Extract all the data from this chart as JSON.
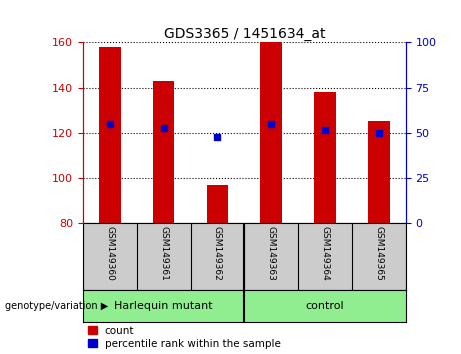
{
  "title": "GDS3365 / 1451634_at",
  "samples": [
    "GSM149360",
    "GSM149361",
    "GSM149362",
    "GSM149363",
    "GSM149364",
    "GSM149365"
  ],
  "count_values": [
    158,
    143,
    97,
    160,
    138,
    125
  ],
  "percentile_values": [
    124,
    122,
    118,
    124,
    121,
    120
  ],
  "ylim_left": [
    80,
    160
  ],
  "yticks_left": [
    80,
    100,
    120,
    140,
    160
  ],
  "ylim_right": [
    0,
    100
  ],
  "yticks_right": [
    0,
    25,
    50,
    75,
    100
  ],
  "bar_color": "#cc0000",
  "dot_color": "#0000cc",
  "group1_label": "Harlequin mutant",
  "group2_label": "control",
  "group_color": "#90ee90",
  "sample_bg_color": "#cccccc",
  "group_label_text": "genotype/variation",
  "left_axis_color": "#cc0000",
  "right_axis_color": "#0000cc",
  "legend_count_label": "count",
  "legend_percentile_label": "percentile rank within the sample",
  "bar_width": 0.4
}
